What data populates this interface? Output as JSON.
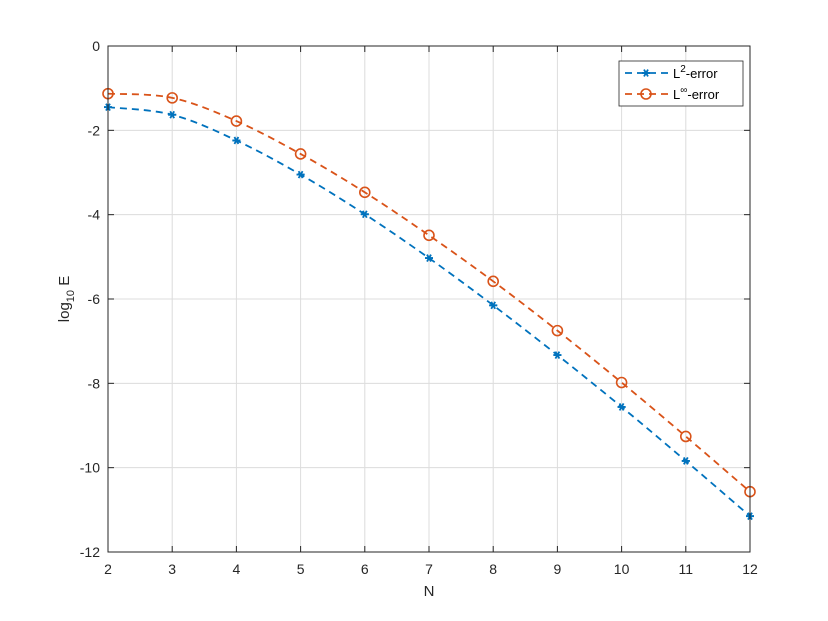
{
  "chart_data": {
    "type": "line",
    "xlabel": "N",
    "ylabel": {
      "base": "log",
      "sub": "10",
      "rest": " E"
    },
    "xlim": [
      2,
      12
    ],
    "ylim": [
      -12,
      0
    ],
    "xticks": [
      2,
      3,
      4,
      5,
      6,
      7,
      8,
      9,
      10,
      11,
      12
    ],
    "yticks": [
      0,
      -2,
      -4,
      -6,
      -8,
      -10,
      -12
    ],
    "grid": true,
    "legend_position": "top-right",
    "x": [
      2,
      3,
      4,
      5,
      6,
      7,
      8,
      9,
      10,
      11,
      12
    ],
    "series": [
      {
        "name": {
          "base": "L",
          "sup": "2",
          "rest": "-error"
        },
        "color": "#0072BD",
        "marker": "asterisk",
        "linestyle": "dashed",
        "values": [
          -1.45,
          -1.63,
          -2.24,
          -3.05,
          -3.99,
          -5.03,
          -6.15,
          -7.33,
          -8.56,
          -9.84,
          -11.15
        ]
      },
      {
        "name": {
          "base": "L",
          "sup": "∞",
          "rest": "-error"
        },
        "color": "#D95319",
        "marker": "circle",
        "linestyle": "dashed",
        "values": [
          -1.13,
          -1.23,
          -1.78,
          -2.56,
          -3.47,
          -4.49,
          -5.58,
          -6.75,
          -7.98,
          -9.26,
          -10.57
        ]
      }
    ]
  }
}
